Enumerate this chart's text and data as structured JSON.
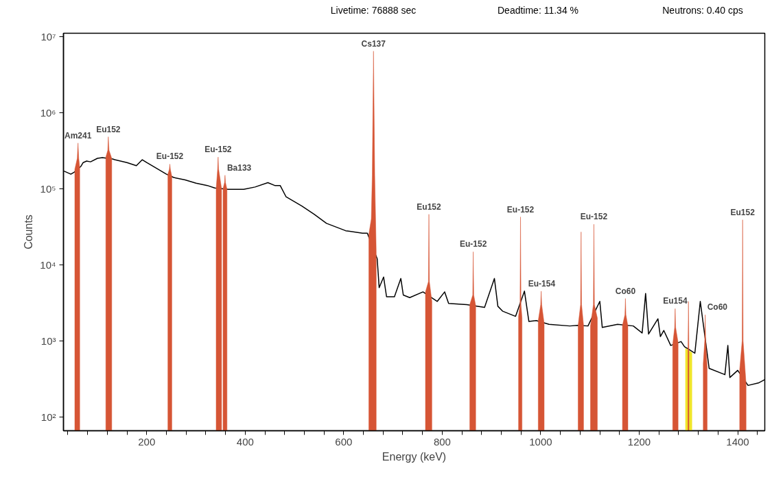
{
  "chart_data": {
    "type": "line",
    "xlabel": "Energy (keV)",
    "ylabel": "Counts",
    "log": true,
    "grid": false,
    "xlim": [
      31,
      1455
    ],
    "ylim": [
      66,
      11000000
    ],
    "xticks": [
      {
        "value": 40,
        "label": null
      },
      {
        "value": 80,
        "label": null
      },
      {
        "value": 120,
        "label": null
      },
      {
        "value": 160,
        "label": null
      },
      200,
      {
        "value": 240,
        "label": null
      },
      {
        "value": 280,
        "label": null
      },
      {
        "value": 320,
        "label": null
      },
      {
        "value": 360,
        "label": null
      },
      400,
      {
        "value": 440,
        "label": null
      },
      {
        "value": 480,
        "label": null
      },
      {
        "value": 520,
        "label": null
      },
      {
        "value": 560,
        "label": null
      },
      600,
      {
        "value": 640,
        "label": null
      },
      {
        "value": 680,
        "label": null
      },
      {
        "value": 720,
        "label": null
      },
      {
        "value": 760,
        "label": null
      },
      800,
      {
        "value": 840,
        "label": null
      },
      {
        "value": 880,
        "label": null
      },
      {
        "value": 920,
        "label": null
      },
      {
        "value": 960,
        "label": null
      },
      1000,
      {
        "value": 1040,
        "label": null
      },
      {
        "value": 1080,
        "label": null
      },
      {
        "value": 1120,
        "label": null
      },
      {
        "value": 1160,
        "label": null
      },
      1200,
      {
        "value": 1240,
        "label": null
      },
      {
        "value": 1280,
        "label": null
      },
      {
        "value": 1320,
        "label": null
      },
      {
        "value": 1360,
        "label": null
      },
      1400,
      {
        "value": 1440,
        "label": null
      }
    ],
    "yticks": [
      {
        "value": 100,
        "label": "10²"
      },
      {
        "value": 1000,
        "label": "10³"
      },
      {
        "value": 10000,
        "label": "10⁴"
      },
      {
        "value": 100000,
        "label": "10⁵"
      },
      {
        "value": 1000000,
        "label": "10⁶"
      },
      {
        "value": 10000000,
        "label": "10⁷"
      }
    ],
    "series": [
      {
        "color": "#000000",
        "x": [
          32,
          46,
          53,
          60,
          66,
          71,
          78,
          86,
          100,
          110,
          122,
          131,
          135,
          160,
          179,
          191,
          200,
          223,
          240,
          247,
          255,
          278,
          300,
          323,
          338,
          346,
          357,
          365,
          372,
          397,
          420,
          446,
          460,
          471,
          483,
          515,
          540,
          565,
          604,
          638,
          648,
          658,
          668,
          672,
          681,
          687,
          703,
          716,
          721,
          734,
          761,
          773,
          790,
          805,
          813,
          850,
          863,
          886,
          906,
          913,
          923,
          949,
          959,
          967,
          976,
          991,
          1002,
          1017,
          1059,
          1075,
          1082,
          1096,
          1108,
          1120,
          1125,
          1156,
          1172,
          1188,
          1206,
          1213,
          1219,
          1238,
          1243,
          1250,
          1264,
          1273,
          1285,
          1292,
          1300,
          1313,
          1324,
          1334,
          1342,
          1374,
          1380,
          1384,
          1400,
          1410,
          1421,
          1442,
          1455
        ],
        "values": [
          170000,
          155000,
          165000,
          null,
          195000,
          220000,
          230000,
          225000,
          250000,
          255000,
          null,
          245000,
          240000,
          220000,
          200000,
          240000,
          220000,
          180000,
          155000,
          null,
          140000,
          130000,
          118000,
          110000,
          102000,
          null,
          null,
          98000,
          98000,
          98000,
          105000,
          120000,
          110000,
          110000,
          78000,
          59000,
          46000,
          35000,
          28000,
          26000,
          26000,
          null,
          12000,
          5000,
          6900,
          3800,
          3800,
          6600,
          4000,
          3700,
          4400,
          null,
          3300,
          4400,
          3100,
          3000,
          null,
          2750,
          6600,
          2850,
          2450,
          2100,
          null,
          4500,
          1800,
          1850,
          null,
          1650,
          1570,
          1600,
          null,
          1570,
          null,
          3300,
          1500,
          1650,
          null,
          1570,
          1270,
          4200,
          1230,
          1950,
          1140,
          1370,
          870,
          null,
          980,
          840,
          null,
          690,
          3300,
          null,
          435,
          360,
          870,
          330,
          410,
          null,
          260,
          280,
          310
        ]
      },
      {
        "type": "area",
        "color": "#f0e62a",
        "x": [
          1294,
          1300,
          1307
        ],
        "values": [
          800,
          750,
          700
        ]
      },
      {
        "type": "area",
        "color": "#d65535",
        "x": [
          54,
          59,
          60.5,
          62,
          64,
          65,
          117,
          121,
          122,
          123.5,
          129,
          130,
          243,
          246,
          247,
          248,
          251,
          252,
          341,
          344,
          345,
          346,
          352,
          353,
          355,
          358,
          359,
          360,
          363,
          364,
          651,
          656,
          658,
          660.5,
          663,
          666,
          667,
          766,
          772,
          773,
          774,
          779,
          780,
          856,
          862,
          863,
          864,
          868,
          869,
          955,
          958,
          959,
          960,
          962,
          963,
          995,
          1000,
          1001,
          1002,
          1007,
          1008,
          1076,
          1081,
          1082,
          1083,
          1087,
          1088,
          1101,
          1107,
          1108,
          1109,
          1115,
          1116,
          1166,
          1171,
          1172,
          1173,
          1177,
          1178,
          1268,
          1272,
          1273,
          1274,
          1279,
          1280,
          1299,
          1300,
          1301,
          1302,
          1330,
          1333,
          1334,
          1335,
          1338,
          1339,
          1404,
          1409,
          1410,
          1411,
          1417
        ],
        "values": [
          180000,
          250000,
          397000,
          250000,
          190000,
          null,
          260000,
          320000,
          480000,
          320000,
          250000,
          null,
          155000,
          180000,
          210000,
          180000,
          145000,
          null,
          100000,
          180000,
          260000,
          180000,
          100000,
          null,
          100000,
          120000,
          150000,
          120000,
          98000,
          null,
          25000,
          40000,
          150000,
          6400000,
          150000,
          15000,
          null,
          4400,
          6000,
          46000,
          6000,
          3300,
          null,
          3000,
          4000,
          14800,
          4000,
          2900,
          null,
          2100,
          3000,
          42500,
          3000,
          2000,
          null,
          1850,
          3000,
          4500,
          3000,
          1700,
          null,
          1600,
          3000,
          27000,
          3000,
          1600,
          null,
          1570,
          3000,
          34000,
          3000,
          2000,
          null,
          1600,
          2200,
          3600,
          2200,
          1570,
          null,
          900,
          1500,
          2650,
          1500,
          950,
          null,
          750,
          3300,
          750,
          null,
          500,
          1000,
          2200,
          1000,
          450,
          null,
          420,
          1000,
          39000,
          1000,
          270
        ]
      }
    ],
    "annotations": [
      "Livetime: 76888 sec",
      "Deadtime: 11.34 %",
      "Neutrons: 0.40 cps",
      {
        "text": "Am241",
        "x": 60.5,
        "y": 397000
      },
      {
        "text": "Eu152",
        "x": 122,
        "y": 480000
      },
      {
        "text": "Eu-152",
        "x": 247,
        "y": 210000
      },
      {
        "text": "Eu-152",
        "x": 345,
        "y": 260000
      },
      {
        "text": "Ba133",
        "x": 359,
        "y": 150000
      },
      {
        "text": "Cs137",
        "x": 660.5,
        "y": 6400000
      },
      {
        "text": "Eu152",
        "x": 773,
        "y": 46000
      },
      {
        "text": "Eu-152",
        "x": 863,
        "y": 14800
      },
      {
        "text": "Eu-152",
        "x": 959,
        "y": 42500
      },
      {
        "text": "Eu-154",
        "x": 1002,
        "y": 4500
      },
      {
        "text": "Eu-152",
        "x": 1108,
        "y": 34000
      },
      {
        "text": "Co60",
        "x": 1172,
        "y": 3600
      },
      {
        "text": "Eu154",
        "x": 1273,
        "y": 2650
      },
      {
        "text": "Co60",
        "x": 1334,
        "y": 2200
      },
      {
        "text": "Eu152",
        "x": 1410,
        "y": 39000
      }
    ]
  }
}
